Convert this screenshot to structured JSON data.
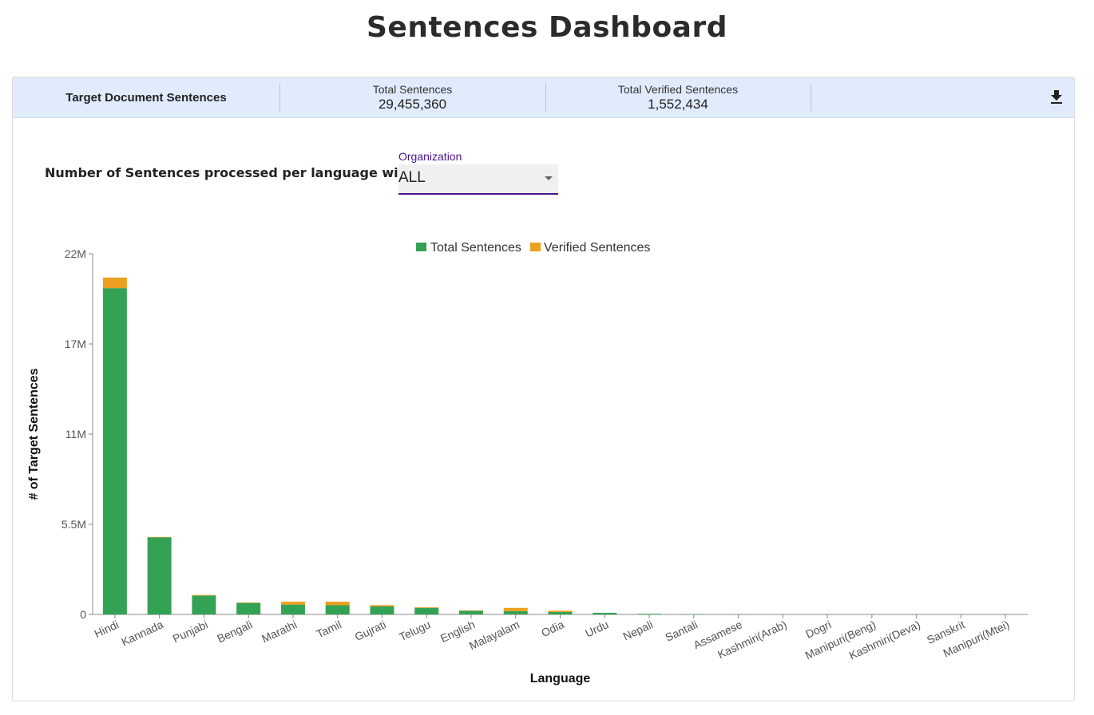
{
  "page": {
    "title": "Sentences Dashboard"
  },
  "summary": {
    "title": "Target Document Sentences",
    "stats": [
      {
        "label": "Total Sentences",
        "value": "29,455,360"
      },
      {
        "label": "Total Verified Sentences",
        "value": "1,552,434"
      }
    ],
    "download_icon": "download-icon"
  },
  "filter": {
    "label": "Number of Sentences processed per language with",
    "select_caption": "Organization",
    "select_value": "ALL"
  },
  "colors": {
    "total": "#34a255",
    "verified": "#eba021",
    "accent": "#4a148c",
    "bar_bg": "#e0ebfc"
  },
  "chart_data": {
    "type": "bar",
    "stacked": true,
    "xlabel": "Language",
    "ylabel": "# of Target Sentences",
    "ylim": [
      0,
      22000000
    ],
    "yticks": [
      "0",
      "5.5M",
      "11M",
      "17M",
      "22M"
    ],
    "legend_position": "top-center",
    "categories": [
      "Hindi",
      "Kannada",
      "Punjabi",
      "Bengali",
      "Marathi",
      "Tamil",
      "Gujrati",
      "Telugu",
      "English",
      "Malayalam",
      "Odia",
      "Urdu",
      "Nepali",
      "Santali",
      "Assamese",
      "Kashmiri(Arab)",
      "Dogri",
      "Manipuri(Beng)",
      "Kashmiri(Deva)",
      "Sanskrit",
      "Manipuri(Mtei)"
    ],
    "series": [
      {
        "name": "Total Sentences",
        "color": "#34a255",
        "values": [
          19900000,
          4700000,
          1150000,
          700000,
          600000,
          560000,
          490000,
          400000,
          220000,
          200000,
          150000,
          100000,
          40000,
          25000,
          10000,
          0,
          0,
          0,
          0,
          0,
          0
        ]
      },
      {
        "name": "Verified Sentences",
        "color": "#eba021",
        "values": [
          650000,
          30000,
          40000,
          30000,
          180000,
          220000,
          80000,
          40000,
          30000,
          200000,
          80000,
          0,
          0,
          0,
          0,
          0,
          0,
          0,
          0,
          0,
          0
        ]
      }
    ]
  }
}
